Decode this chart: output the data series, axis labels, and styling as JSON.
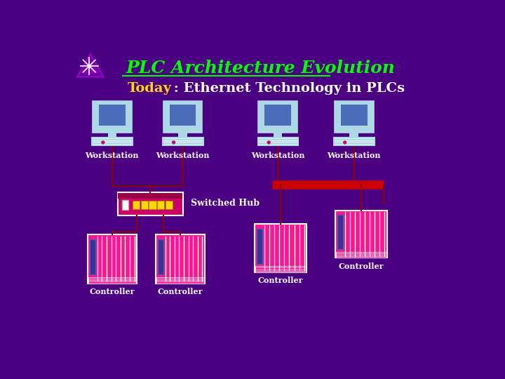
{
  "bg_color": "#4B0082",
  "title": "PLC Architecture Evolution",
  "title_color": "#00FF00",
  "subtitle_today": "Today",
  "subtitle_today_color": "#FFD700",
  "subtitle_rest": " : Ethernet Technology in PLCs",
  "subtitle_rest_color": "#FFFFFF",
  "workstation_label": "Workstation",
  "controller_label": "Controller",
  "switched_hub_label": "Switched Hub",
  "label_color": "#FFFFFF",
  "monitor_outer": "#ADD8E6",
  "monitor_inner": "#4B6CB7",
  "base_color": "#ADD8E6",
  "keyboard_line_color": "#FFFFFF",
  "plc_body_color": "#FF1493",
  "plc_border_color": "#FFFFFF",
  "wire_color": "#8B0000",
  "hub_body_color": "#CC0066",
  "hub_port_color": "#FFD700",
  "hub_white": "#FFFFFF",
  "eth_bar_color": "#CC0000",
  "dot_color": "#CC0066"
}
